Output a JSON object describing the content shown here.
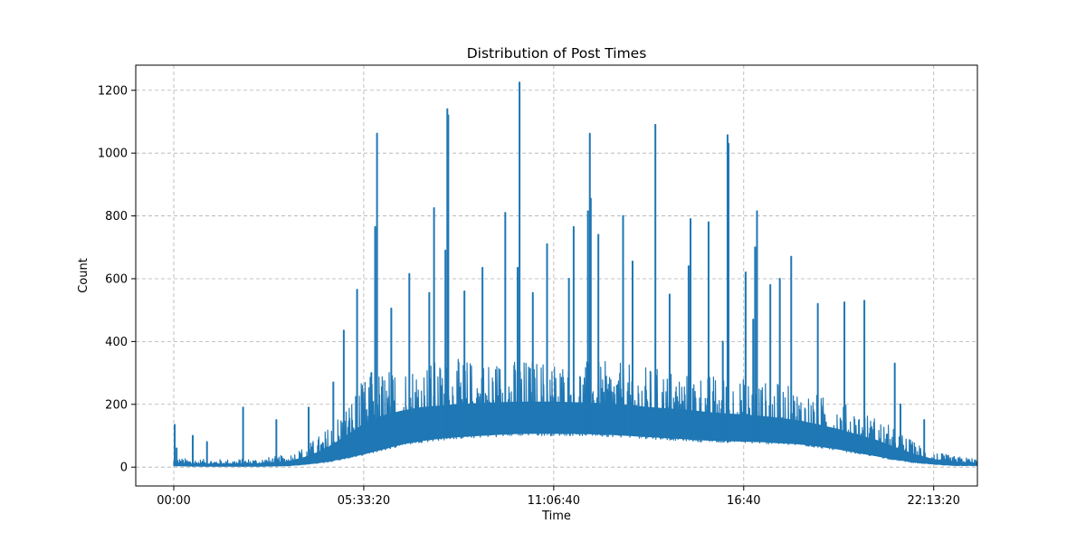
{
  "chart_data": {
    "type": "line",
    "title": "Distribution of Post Times",
    "xlabel": "Time",
    "ylabel": "Count",
    "x_unit": "seconds since 00:00",
    "xlim": [
      -4000,
      84600
    ],
    "ylim": [
      -60,
      1280
    ],
    "x_ticks": [
      {
        "value": 0,
        "label": "00:00"
      },
      {
        "value": 20000,
        "label": "05:33:20"
      },
      {
        "value": 40000,
        "label": "11:06:40"
      },
      {
        "value": 60000,
        "label": "16:40"
      },
      {
        "value": 80000,
        "label": "22:13:20"
      }
    ],
    "y_ticks": [
      0,
      200,
      400,
      600,
      800,
      1000,
      1200
    ],
    "grid": true,
    "line_color": "#1f77b4",
    "series": [
      {
        "envelope": {
          "x": [
            0,
            3000,
            6000,
            9000,
            12000,
            14000,
            16000,
            18000,
            20000,
            22000,
            24000,
            26000,
            28000,
            30000,
            32000,
            34000,
            36000,
            38000,
            40000,
            42000,
            44000,
            46000,
            48000,
            50000,
            52000,
            54000,
            56000,
            58000,
            60000,
            62000,
            64000,
            66000,
            68000,
            70000,
            72000,
            74000,
            76000,
            78000,
            80000,
            82000,
            86000
          ],
          "low": [
            5,
            3,
            3,
            3,
            5,
            10,
            18,
            30,
            45,
            62,
            80,
            92,
            100,
            106,
            110,
            114,
            117,
            118,
            118,
            118,
            116,
            114,
            110,
            106,
            102,
            98,
            94,
            92,
            90,
            88,
            84,
            80,
            72,
            62,
            50,
            38,
            26,
            16,
            10,
            6,
            5
          ],
          "high": [
            30,
            25,
            25,
            28,
            40,
            70,
            120,
            200,
            280,
            320,
            330,
            340,
            340,
            345,
            345,
            345,
            345,
            345,
            345,
            340,
            340,
            335,
            330,
            320,
            315,
            310,
            300,
            290,
            285,
            275,
            265,
            250,
            230,
            210,
            185,
            160,
            120,
            80,
            50,
            35,
            25
          ]
        },
        "spikes": [
          {
            "x": 100,
            "y": 135
          },
          {
            "x": 300,
            "y": 60
          },
          {
            "x": 2000,
            "y": 100
          },
          {
            "x": 3500,
            "y": 80
          },
          {
            "x": 7300,
            "y": 190
          },
          {
            "x": 10800,
            "y": 150
          },
          {
            "x": 14200,
            "y": 190
          },
          {
            "x": 16800,
            "y": 270
          },
          {
            "x": 17900,
            "y": 435
          },
          {
            "x": 19300,
            "y": 565
          },
          {
            "x": 20800,
            "y": 300
          },
          {
            "x": 21200,
            "y": 765
          },
          {
            "x": 21400,
            "y": 1062
          },
          {
            "x": 22900,
            "y": 505
          },
          {
            "x": 24800,
            "y": 615
          },
          {
            "x": 26900,
            "y": 555
          },
          {
            "x": 27400,
            "y": 825
          },
          {
            "x": 28600,
            "y": 690
          },
          {
            "x": 28800,
            "y": 1140
          },
          {
            "x": 28900,
            "y": 1120
          },
          {
            "x": 30600,
            "y": 560
          },
          {
            "x": 32500,
            "y": 635
          },
          {
            "x": 34900,
            "y": 810
          },
          {
            "x": 36200,
            "y": 635
          },
          {
            "x": 36400,
            "y": 1225
          },
          {
            "x": 37800,
            "y": 555
          },
          {
            "x": 39300,
            "y": 710
          },
          {
            "x": 41600,
            "y": 600
          },
          {
            "x": 42100,
            "y": 765
          },
          {
            "x": 43600,
            "y": 815
          },
          {
            "x": 43800,
            "y": 1062
          },
          {
            "x": 43900,
            "y": 855
          },
          {
            "x": 44700,
            "y": 740
          },
          {
            "x": 47300,
            "y": 800
          },
          {
            "x": 48300,
            "y": 655
          },
          {
            "x": 50700,
            "y": 1090
          },
          {
            "x": 52200,
            "y": 550
          },
          {
            "x": 54200,
            "y": 640
          },
          {
            "x": 54400,
            "y": 790
          },
          {
            "x": 56300,
            "y": 780
          },
          {
            "x": 57800,
            "y": 400
          },
          {
            "x": 58300,
            "y": 1057
          },
          {
            "x": 58400,
            "y": 1030
          },
          {
            "x": 60200,
            "y": 620
          },
          {
            "x": 61000,
            "y": 470
          },
          {
            "x": 61200,
            "y": 700
          },
          {
            "x": 61400,
            "y": 815
          },
          {
            "x": 62800,
            "y": 580
          },
          {
            "x": 63800,
            "y": 600
          },
          {
            "x": 65000,
            "y": 670
          },
          {
            "x": 67800,
            "y": 520
          },
          {
            "x": 70600,
            "y": 525
          },
          {
            "x": 72700,
            "y": 530
          },
          {
            "x": 75900,
            "y": 330
          },
          {
            "x": 76500,
            "y": 200
          },
          {
            "x": 79000,
            "y": 150
          }
        ]
      }
    ]
  }
}
